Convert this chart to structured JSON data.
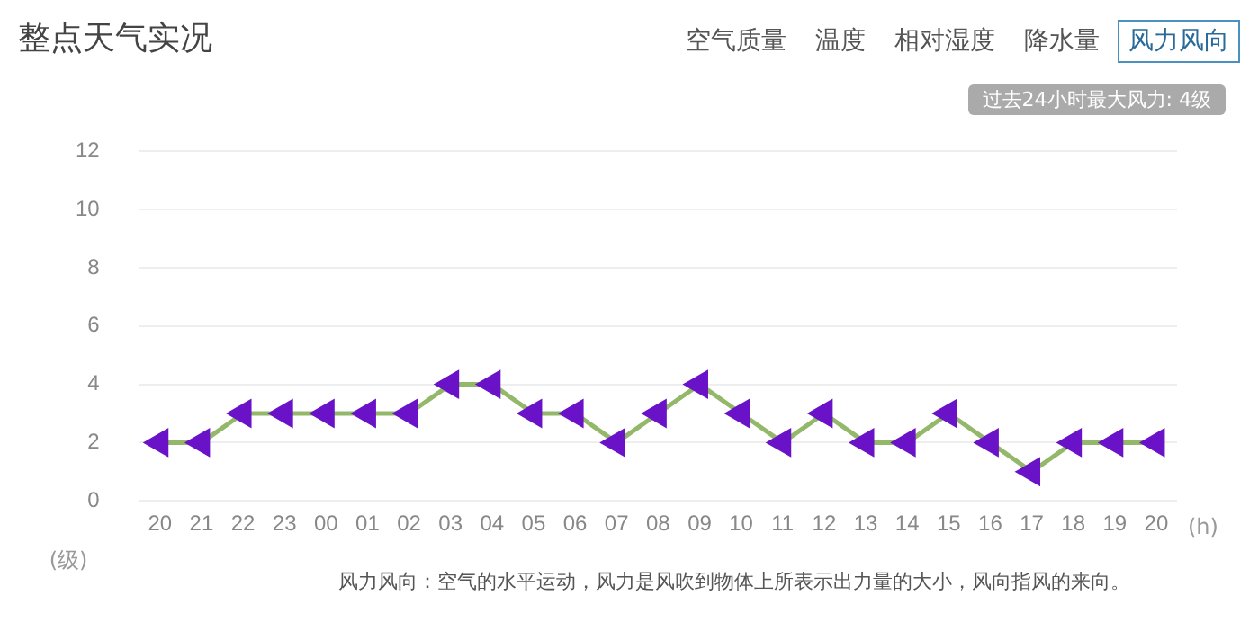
{
  "chart_data": {
    "type": "line",
    "title": "整点天气实况",
    "xlabel": "(h)",
    "ylabel": "(级)",
    "categories": [
      "20",
      "21",
      "22",
      "23",
      "00",
      "01",
      "02",
      "03",
      "04",
      "05",
      "06",
      "07",
      "08",
      "09",
      "10",
      "11",
      "12",
      "13",
      "14",
      "15",
      "16",
      "17",
      "18",
      "19",
      "20"
    ],
    "series": [
      {
        "color": "#94b86a",
        "colors": [
          "#6a12c8",
          "#6a12c8",
          "#6a12c8",
          "#6a12c8",
          "#6a12c8",
          "#6a12c8",
          "#6a12c8",
          "#6a12c8",
          "#6a12c8",
          "#6a12c8",
          "#6a12c8",
          "#6a12c8",
          "#6a12c8",
          "#6a12c8",
          "#6a12c8",
          "#6a12c8",
          "#6a12c8",
          "#6a12c8",
          "#6a12c8",
          "#6a12c8",
          "#6a12c8",
          "#6a12c8",
          "#6a12c8",
          "#6a12c8",
          "#6a12c8"
        ],
        "values": [
          2,
          2,
          3,
          3,
          3,
          3,
          3,
          4,
          4,
          3,
          3,
          2,
          3,
          4,
          3,
          2,
          3,
          2,
          2,
          3,
          2,
          1,
          2,
          2,
          2
        ]
      }
    ],
    "ylim": [
      0,
      12
    ],
    "yticks": [
      0,
      2,
      4,
      6,
      8,
      10,
      12
    ],
    "grid": "y",
    "legend": false,
    "marker": "triangle",
    "line_style": "solid",
    "annotations": [
      "空气质量",
      "温度",
      "相对湿度",
      "降水量",
      "风力风向",
      "过去24小时最大风力: 4级",
      "风力风向：空气的水平运动，风力是风吹到物体上所表示出力量的大小，风向指风的来向。"
    ]
  }
}
